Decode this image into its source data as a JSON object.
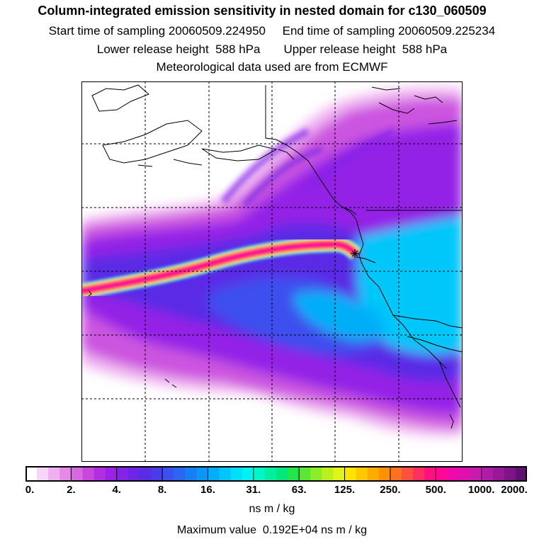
{
  "header": {
    "title": "Column-integrated emission sensitivity in nested domain for c130_060509",
    "sampling_line": "Start time of sampling 20060509.224950     End time of sampling 20060509.225234",
    "release_line": "Lower release height  588 hPa       Upper release height  588 hPa",
    "met_line": "Meteorological data used are from ECMWF"
  },
  "colorbar": {
    "ticks": [
      "0.",
      "2.",
      "4.",
      "8.",
      "16.",
      "31.",
      "63.",
      "125.",
      "250.",
      "500.",
      "1000.",
      "2000."
    ],
    "colors": [
      "#ffffff",
      "#f6d6f6",
      "#eeb0ee",
      "#e48ae6",
      "#d868e0",
      "#c848de",
      "#b32ee0",
      "#9b22e6",
      "#8424e8",
      "#6e26e6",
      "#5a2ce6",
      "#4a3cea",
      "#3c50ee",
      "#2a66f2",
      "#187ef4",
      "#0c96f6",
      "#00aef8",
      "#00c6fa",
      "#00def8",
      "#00f2f0",
      "#00f6c8",
      "#00f0a0",
      "#00e87c",
      "#22e64c",
      "#5ae832",
      "#8cec28",
      "#baf020",
      "#dff418",
      "#ffe400",
      "#ffc800",
      "#ffac00",
      "#ff9000",
      "#ff7020",
      "#ff5040",
      "#ff3060",
      "#ff1080",
      "#ff0898",
      "#f008a8",
      "#e010b0",
      "#c81ab0",
      "#b01ca8",
      "#98189a",
      "#7e1488",
      "#601070"
    ],
    "units": "ns m / kg"
  },
  "footer": {
    "max_value": "Maximum value  0.192E+04 ns m / kg"
  },
  "map": {
    "release_marker": "release-point"
  }
}
